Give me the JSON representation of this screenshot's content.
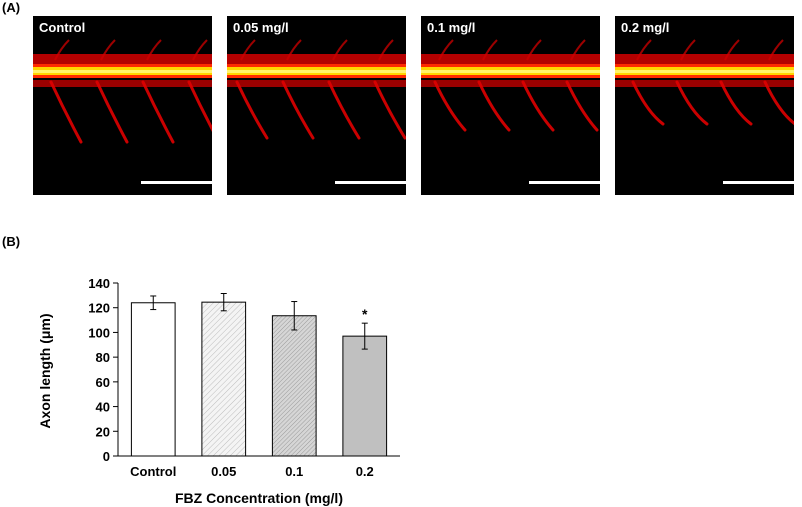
{
  "panel_a": {
    "label": "(A)",
    "images": [
      {
        "label": "Control"
      },
      {
        "label": "0.05 mg/l"
      },
      {
        "label": "0.1 mg/l"
      },
      {
        "label": "0.2 mg/l"
      }
    ]
  },
  "panel_b": {
    "label": "(B)"
  },
  "chart_data": {
    "type": "bar",
    "categories": [
      "Control",
      "0.05",
      "0.1",
      "0.2"
    ],
    "values": [
      124,
      124.5,
      113.5,
      97
    ],
    "errors": [
      5.5,
      7,
      11.5,
      10.5
    ],
    "significance": [
      "",
      "",
      "",
      "*"
    ],
    "fills": [
      "#ffffff",
      "hatch-light",
      "hatch-dense",
      "#c0c0c0"
    ],
    "xlabel": "FBZ Concentration (mg/l)",
    "ylabel": "Axon length (μm)",
    "ylim": [
      0,
      140
    ],
    "yticks": [
      0,
      20,
      40,
      60,
      80,
      100,
      120,
      140
    ]
  }
}
